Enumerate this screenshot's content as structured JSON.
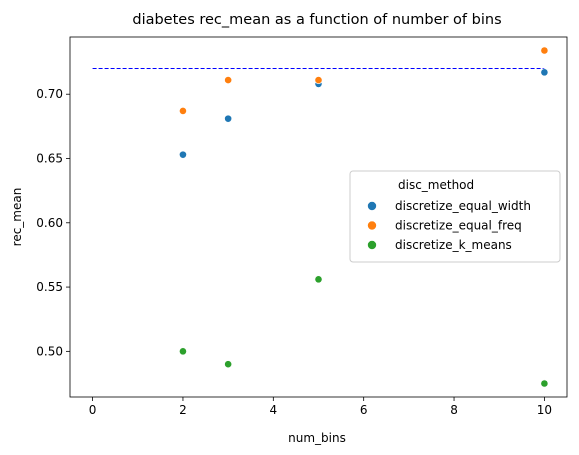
{
  "chart_data": {
    "type": "scatter",
    "title": "diabetes rec_mean as a function of number of bins",
    "xlabel": "num_bins",
    "ylabel": "rec_mean",
    "xlim": [
      -0.5,
      10.5
    ],
    "ylim": [
      0.4645,
      0.7445
    ],
    "xticks": [
      0,
      2,
      4,
      6,
      8,
      10
    ],
    "xtick_labels": [
      "0",
      "2",
      "4",
      "6",
      "8",
      "10"
    ],
    "yticks": [
      0.5,
      0.55,
      0.6,
      0.65,
      0.7
    ],
    "ytick_labels": [
      "0.50",
      "0.55",
      "0.60",
      "0.65",
      "0.70"
    ],
    "grid": false,
    "legend": {
      "title": "disc_method",
      "position": "center-right"
    },
    "series": [
      {
        "name": "discretize_equal_width",
        "color": "#1f77b4",
        "points": [
          {
            "x": 2,
            "y": 0.653
          },
          {
            "x": 3,
            "y": 0.681
          },
          {
            "x": 5,
            "y": 0.708
          },
          {
            "x": 10,
            "y": 0.717
          }
        ]
      },
      {
        "name": "discretize_equal_freq",
        "color": "#ff7f0e",
        "points": [
          {
            "x": 2,
            "y": 0.687
          },
          {
            "x": 3,
            "y": 0.711
          },
          {
            "x": 5,
            "y": 0.711
          },
          {
            "x": 10,
            "y": 0.734
          }
        ]
      },
      {
        "name": "discretize_k_means",
        "color": "#2ca02c",
        "points": [
          {
            "x": 2,
            "y": 0.5
          },
          {
            "x": 3,
            "y": 0.49
          },
          {
            "x": 5,
            "y": 0.556
          },
          {
            "x": 10,
            "y": 0.475
          }
        ]
      }
    ],
    "reference_line": {
      "y": 0.72,
      "x_start": 0,
      "x_end": 10,
      "color": "#0000ff",
      "style": "dashed"
    }
  }
}
